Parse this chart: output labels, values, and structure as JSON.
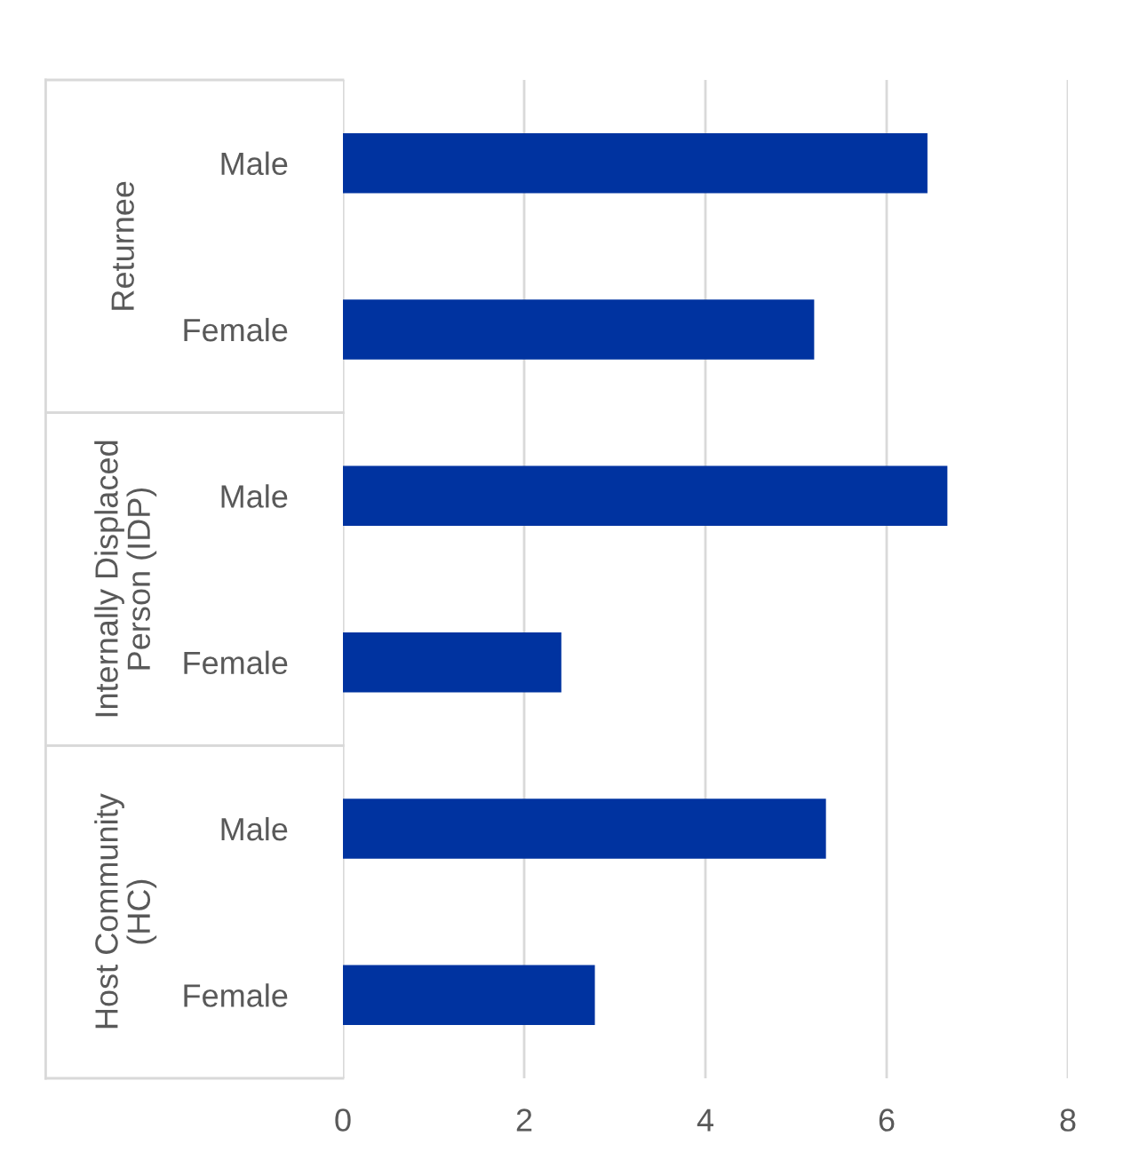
{
  "chart_data": {
    "type": "bar",
    "orientation": "horizontal",
    "categories": [
      "Male",
      "Female",
      "Male",
      "Female",
      "Male",
      "Female"
    ],
    "values": [
      6.45,
      5.2,
      6.67,
      2.41,
      5.33,
      2.78
    ],
    "color": "#0033a0",
    "xlim": [
      0,
      8
    ],
    "xticks": [
      0,
      2,
      4,
      6,
      8
    ],
    "grid": "x",
    "legend": false,
    "annotations": [
      "Returnee",
      "Internally Displaced\nPerson (IDP)",
      "Host Community\n(HC)"
    ]
  }
}
